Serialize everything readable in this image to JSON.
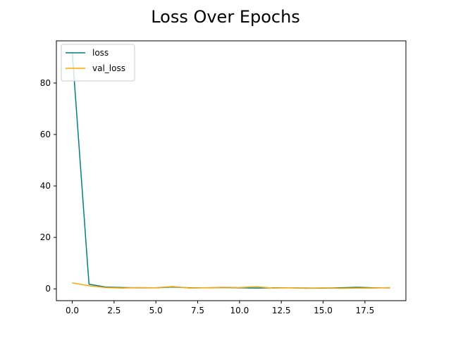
{
  "chart_data": {
    "type": "line",
    "title": "Loss Over Epochs",
    "xlabel": "",
    "ylabel": "",
    "xlim": [
      -0.95,
      19.95
    ],
    "ylim": [
      -4.6,
      96.4
    ],
    "xticks": [
      0,
      2.5,
      5,
      7.5,
      10,
      12.5,
      15,
      17.5
    ],
    "xtick_labels": [
      "0.0",
      "2.5",
      "5.0",
      "7.5",
      "10.0",
      "12.5",
      "15.0",
      "17.5"
    ],
    "yticks": [
      0,
      20,
      40,
      60,
      80
    ],
    "ytick_labels": [
      "0",
      "20",
      "40",
      "60",
      "80"
    ],
    "grid": false,
    "legend_position": "top-left",
    "x": [
      0,
      1,
      2,
      3,
      4,
      5,
      6,
      7,
      8,
      9,
      10,
      11,
      12,
      13,
      14,
      15,
      16,
      17,
      18,
      19
    ],
    "series": [
      {
        "name": "loss",
        "color": "#008080",
        "values": [
          92.0,
          1.8,
          0.7,
          0.5,
          0.4,
          0.4,
          0.7,
          0.4,
          0.4,
          0.5,
          0.4,
          0.3,
          0.4,
          0.4,
          0.3,
          0.3,
          0.4,
          0.6,
          0.4,
          0.4
        ]
      },
      {
        "name": "val_loss",
        "color": "#FFA500",
        "values": [
          2.3,
          1.2,
          0.5,
          0.3,
          0.5,
          0.4,
          0.9,
          0.3,
          0.4,
          0.6,
          0.5,
          0.8,
          0.3,
          0.4,
          0.2,
          0.4,
          0.2,
          0.3,
          0.3,
          0.5
        ]
      }
    ]
  }
}
